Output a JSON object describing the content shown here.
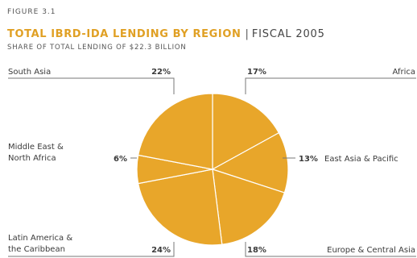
{
  "figure_label": "FIGURE 3.1",
  "title": "TOTAL IBRD-IDA LENDING BY REGION",
  "title_suffix": "FISCAL 2005",
  "subtitle": "SHARE OF TOTAL LENDING OF $22.3 BILLION",
  "colors": {
    "pie": "#e8a62a",
    "slice_border": "#ffffff",
    "leader": "#777777",
    "title": "#e0a024"
  },
  "chart_data": {
    "type": "pie",
    "title": "TOTAL IBRD-IDA LENDING BY REGION | FISCAL 2005",
    "subtitle": "SHARE OF TOTAL LENDING OF $22.3 BILLION",
    "unit": "%",
    "slices": [
      {
        "name": "Africa",
        "value": 17,
        "label": "Africa",
        "pct_label": "17%"
      },
      {
        "name": "East Asia & Pacific",
        "value": 13,
        "label": "East Asia & Pacific",
        "pct_label": "13%"
      },
      {
        "name": "Europe & Central Asia",
        "value": 18,
        "label": "Europe & Central Asia",
        "pct_label": "18%"
      },
      {
        "name": "Latin America & the Caribbean",
        "value": 24,
        "label_lines": [
          "Latin America &",
          "the Caribbean"
        ],
        "pct_label": "24%"
      },
      {
        "name": "Middle East & North Africa",
        "value": 6,
        "label_lines": [
          "Middle East &",
          "North Africa"
        ],
        "pct_label": "6%"
      },
      {
        "name": "South Asia",
        "value": 22,
        "label": "South Asia",
        "pct_label": "22%"
      }
    ]
  }
}
